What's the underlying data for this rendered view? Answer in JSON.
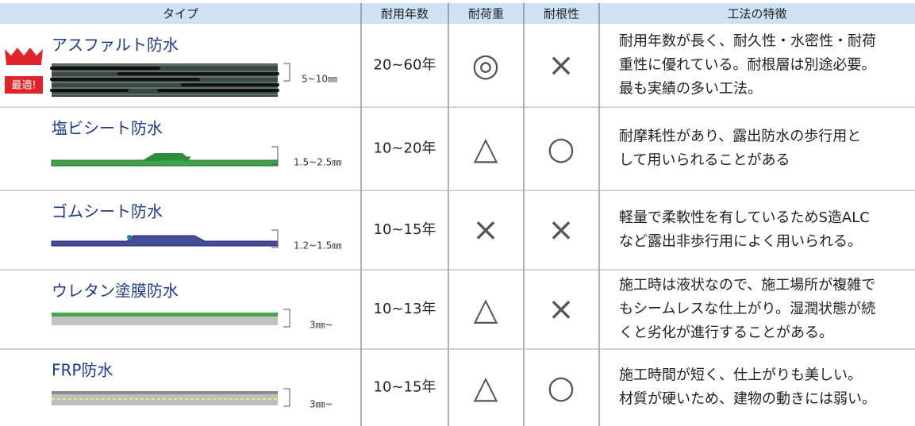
{
  "table": {
    "header": [
      "タイプ",
      "耐用年数",
      "耐荷重",
      "耐根性",
      "工法の特徴"
    ],
    "badge": "最適!",
    "rows": [
      {
        "name": "アスファルト防水",
        "thickness": "5~10㎜",
        "years": "20~60年",
        "load": "◎",
        "root": "×",
        "description": [
          "耐用年数が長く、耐久性・水密性・耐荷",
          "重性に優れている。耐根層は別途必要。",
          "最も実績の多い工法。"
        ]
      },
      {
        "name": "塩ビシート防水",
        "thickness": "1.5~2.5㎜",
        "years": "10~20年",
        "load": "△",
        "root": "○",
        "description": [
          "耐摩耗性があり、露出防水の歩行用と",
          "して用いられることがある"
        ]
      },
      {
        "name": "ゴムシート防水",
        "thickness": "1.2~1.5㎜",
        "years": "10~15年",
        "load": "×",
        "root": "×",
        "description": [
          "軽量で柔軟性を有しているためS造ALC",
          "など露出非歩行用によく用いられる。"
        ]
      },
      {
        "name": "ウレタン塗膜防水",
        "thickness": "3㎜~",
        "years": "10~13年",
        "load": "△",
        "root": "×",
        "description": [
          "施工時は液状なので、施工場所が複雑で",
          "もシームレスな仕上がり。湿潤状態が続",
          "くと劣化が進行することがある。"
        ]
      },
      {
        "name": "FRP防水",
        "thickness": "3㎜~",
        "years": "10~15年",
        "load": "△",
        "root": "○",
        "description": [
          "施工時間が短く、仕上がりも美しい。",
          "材質が硬いため、建物の動きには弱い。"
        ]
      }
    ]
  }
}
